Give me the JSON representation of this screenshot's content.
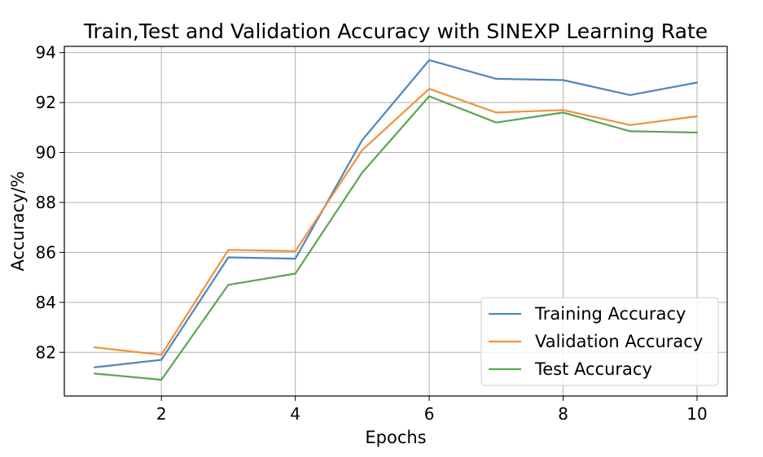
{
  "chart_data": {
    "type": "line",
    "title": "Train,Test and Validation Accuracy with SINEXP Learning Rate",
    "xlabel": "Epochs",
    "ylabel": "Accuracy/%",
    "x": [
      1,
      2,
      3,
      4,
      5,
      6,
      7,
      8,
      9,
      10
    ],
    "xlim": [
      0.55,
      10.45
    ],
    "ylim": [
      80.25,
      94.25
    ],
    "xticks": [
      2,
      4,
      6,
      8,
      10
    ],
    "yticks": [
      82,
      84,
      86,
      88,
      90,
      92,
      94
    ],
    "grid": true,
    "legend_position": "lower-right",
    "series": [
      {
        "name": "Training Accuracy",
        "color": "#4e86bd",
        "values": [
          81.4,
          81.7,
          85.8,
          85.75,
          90.5,
          93.7,
          92.95,
          92.9,
          92.3,
          92.8
        ]
      },
      {
        "name": "Validation Accuracy",
        "color": "#f0913e",
        "values": [
          82.2,
          81.9,
          86.1,
          86.05,
          90.1,
          92.55,
          91.6,
          91.7,
          91.1,
          91.45
        ]
      },
      {
        "name": "Test Accuracy",
        "color": "#5aa652",
        "values": [
          81.15,
          80.9,
          84.7,
          85.15,
          89.2,
          92.25,
          91.2,
          91.6,
          90.85,
          90.8
        ]
      }
    ]
  }
}
